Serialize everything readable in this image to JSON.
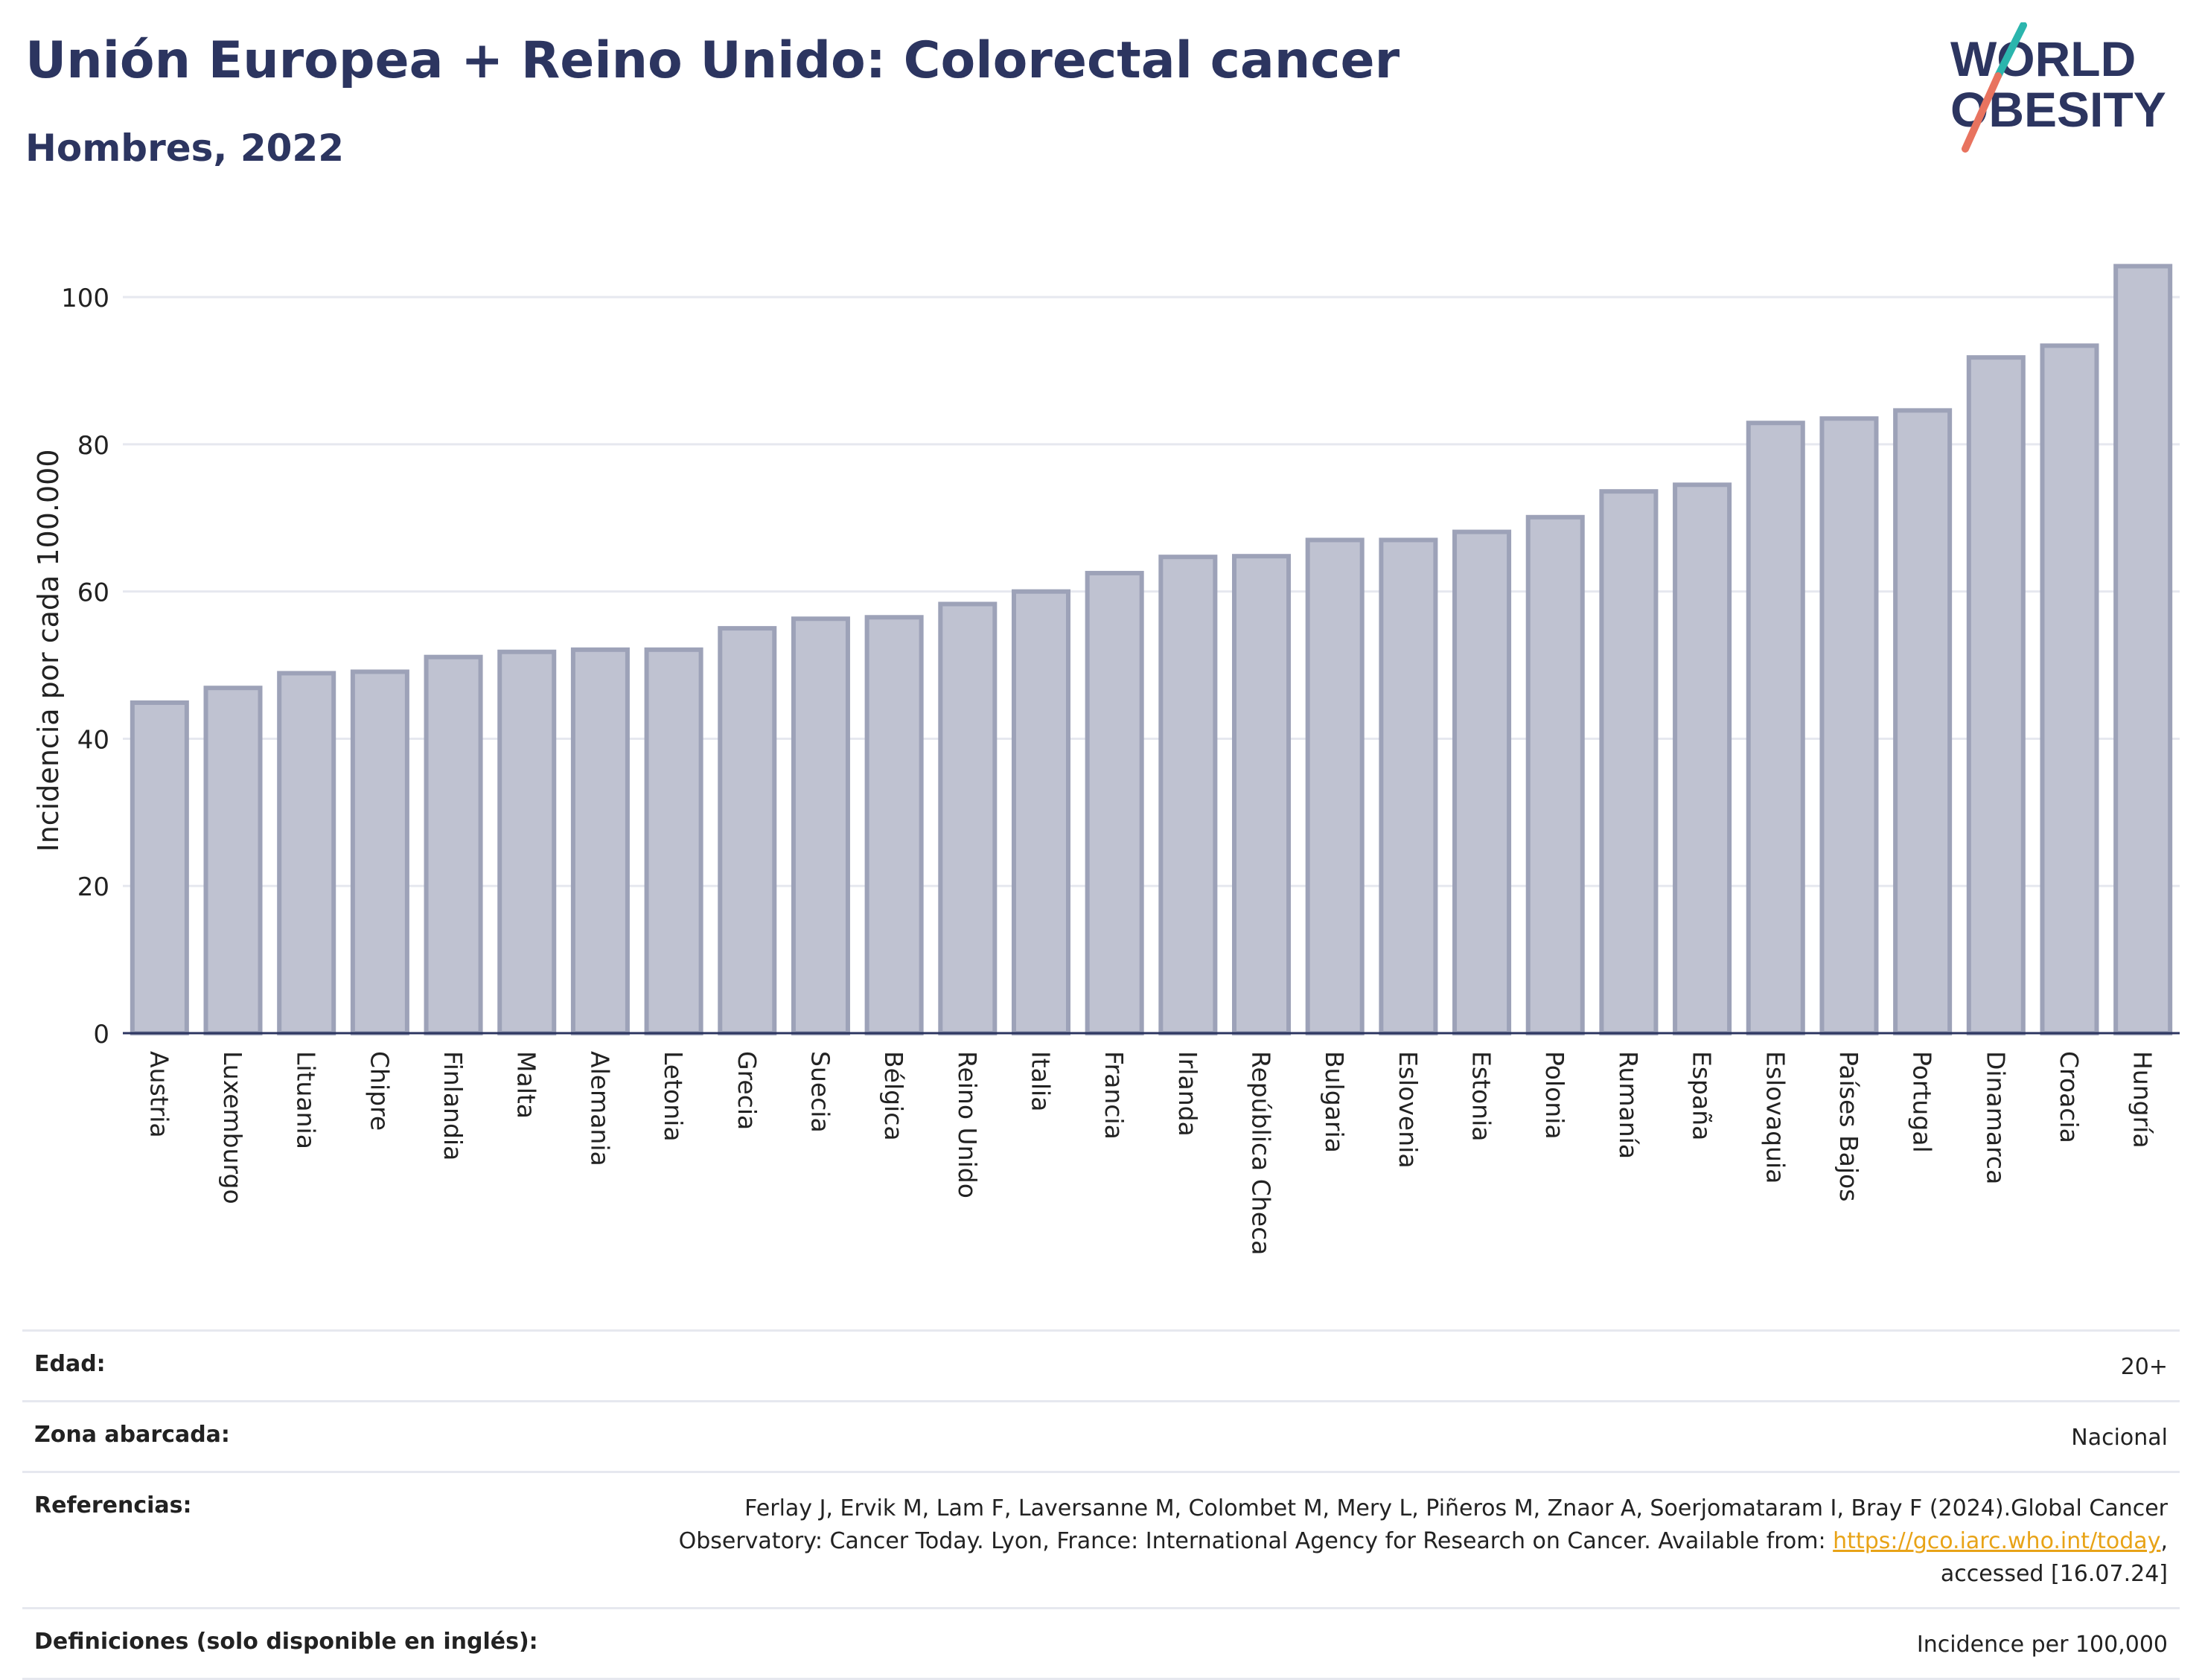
{
  "header": {
    "title": "Unión Europea + Reino Unido: Colorectal cancer",
    "subtitle": "Hombres, 2022",
    "logo_line1": "WORLD",
    "logo_line2": "OBESITY"
  },
  "colors": {
    "title": "#2c3560",
    "bar_fill": "#bfc2d1",
    "bar_stroke": "#9da2b8",
    "grid": "#e6e8ef",
    "link": "#e8a317",
    "logo_teal": "#2bb5ad",
    "logo_coral": "#e8735f"
  },
  "chart_data": {
    "type": "bar",
    "ylabel": "Incidencia por cada 100.000",
    "ylim": [
      0,
      108
    ],
    "yticks": [
      0,
      20,
      40,
      60,
      80,
      100
    ],
    "grid": true,
    "categories": [
      "Austria",
      "Luxemburgo",
      "Lituania",
      "Chipre",
      "Finlandia",
      "Malta",
      "Alemania",
      "Letonia",
      "Grecia",
      "Suecia",
      "Bélgica",
      "Reino Unido",
      "Italia",
      "Francia",
      "Irlanda",
      "República Checa",
      "Bulgaria",
      "Eslovenia",
      "Estonia",
      "Polonia",
      "Rumanía",
      "España",
      "Eslovaquia",
      "Países Bajos",
      "Portugal",
      "Dinamarca",
      "Croacia",
      "Hungría"
    ],
    "values": [
      44.9,
      46.9,
      48.9,
      49.1,
      51.1,
      51.8,
      52.1,
      52.1,
      55.0,
      56.3,
      56.5,
      58.3,
      60.0,
      62.5,
      64.7,
      64.8,
      67.0,
      67.0,
      68.1,
      70.1,
      73.6,
      74.5,
      82.9,
      83.5,
      84.6,
      91.8,
      93.4,
      104.2
    ]
  },
  "meta": {
    "age_label": "Edad:",
    "age_value": "20+",
    "area_label": "Zona abarcada:",
    "area_value": "Nacional",
    "ref_label": "Referencias:",
    "ref_text_1": "Ferlay J, Ervik M, Lam F, Laversanne M, Colombet M, Mery L, Piñeros M, Znaor A, Soerjomataram I, Bray F (2024).Global Cancer Observatory: Cancer Today. Lyon, France: International Agency for Research on Cancer. Available from: ",
    "ref_link": "https://gco.iarc.who.int/today",
    "ref_text_2": ", accessed [16.07.24]",
    "def_label": "Definiciones (solo disponible en inglés):",
    "def_value": "Incidence per 100,000"
  }
}
